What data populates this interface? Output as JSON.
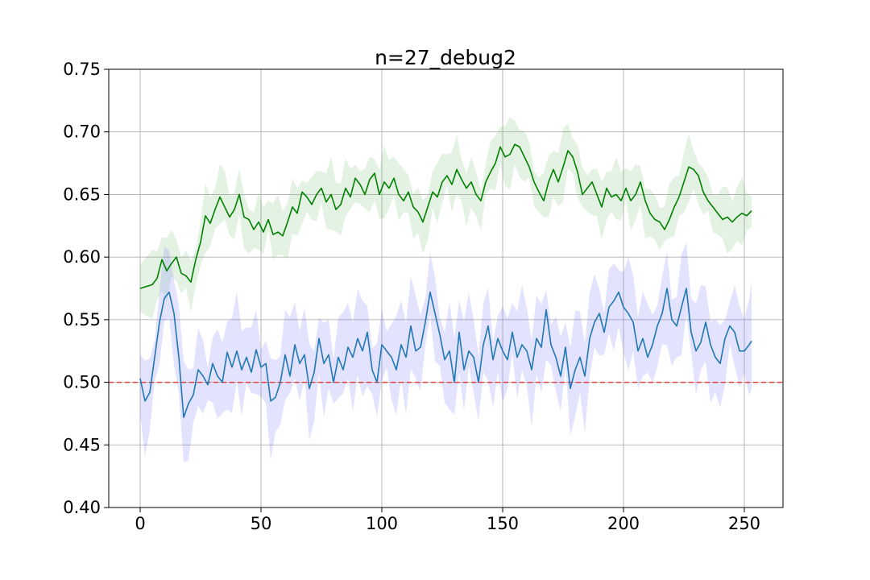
{
  "chart_data": {
    "type": "line",
    "title": "n=27_debug2",
    "xlabel": "",
    "ylabel": "",
    "xlim": [
      -13,
      266
    ],
    "ylim": [
      0.4,
      0.75
    ],
    "xticks": [
      0,
      50,
      100,
      150,
      200,
      250
    ],
    "xtick_labels": [
      "0",
      "50",
      "100",
      "150",
      "200",
      "250"
    ],
    "yticks": [
      0.4,
      0.45,
      0.5,
      0.55,
      0.6,
      0.65,
      0.7,
      0.75
    ],
    "ytick_labels": [
      "0.40",
      "0.45",
      "0.50",
      "0.55",
      "0.60",
      "0.65",
      "0.70",
      "0.75"
    ],
    "grid": true,
    "reference_line": {
      "y": 0.5,
      "color": "#e8403f",
      "style": "dashed"
    },
    "series": [
      {
        "color": "#008000",
        "band_color": "#6ab56a",
        "band_halfwidth": 0.019,
        "points": [
          [
            0,
            0.575
          ],
          [
            5,
            0.578
          ],
          [
            7,
            0.583
          ],
          [
            9,
            0.598
          ],
          [
            11,
            0.589
          ],
          [
            13,
            0.595
          ],
          [
            15,
            0.6
          ],
          [
            17,
            0.587
          ],
          [
            19,
            0.585
          ],
          [
            21,
            0.58
          ],
          [
            23,
            0.598
          ],
          [
            25,
            0.612
          ],
          [
            27,
            0.633
          ],
          [
            29,
            0.627
          ],
          [
            31,
            0.638
          ],
          [
            33,
            0.648
          ],
          [
            35,
            0.64
          ],
          [
            37,
            0.632
          ],
          [
            39,
            0.638
          ],
          [
            41,
            0.65
          ],
          [
            43,
            0.632
          ],
          [
            45,
            0.63
          ],
          [
            47,
            0.622
          ],
          [
            49,
            0.628
          ],
          [
            51,
            0.62
          ],
          [
            53,
            0.63
          ],
          [
            55,
            0.618
          ],
          [
            57,
            0.62
          ],
          [
            59,
            0.617
          ],
          [
            61,
            0.628
          ],
          [
            63,
            0.64
          ],
          [
            65,
            0.635
          ],
          [
            67,
            0.652
          ],
          [
            69,
            0.648
          ],
          [
            71,
            0.642
          ],
          [
            73,
            0.65
          ],
          [
            75,
            0.655
          ],
          [
            77,
            0.644
          ],
          [
            79,
            0.65
          ],
          [
            81,
            0.638
          ],
          [
            83,
            0.642
          ],
          [
            85,
            0.655
          ],
          [
            87,
            0.648
          ],
          [
            89,
            0.663
          ],
          [
            91,
            0.658
          ],
          [
            93,
            0.65
          ],
          [
            95,
            0.662
          ],
          [
            97,
            0.667
          ],
          [
            99,
            0.65
          ],
          [
            101,
            0.66
          ],
          [
            103,
            0.655
          ],
          [
            105,
            0.663
          ],
          [
            107,
            0.65
          ],
          [
            109,
            0.645
          ],
          [
            111,
            0.652
          ],
          [
            113,
            0.64
          ],
          [
            115,
            0.636
          ],
          [
            117,
            0.628
          ],
          [
            119,
            0.64
          ],
          [
            121,
            0.652
          ],
          [
            123,
            0.648
          ],
          [
            125,
            0.66
          ],
          [
            127,
            0.665
          ],
          [
            129,
            0.658
          ],
          [
            131,
            0.67
          ],
          [
            133,
            0.662
          ],
          [
            135,
            0.655
          ],
          [
            137,
            0.66
          ],
          [
            139,
            0.65
          ],
          [
            141,
            0.645
          ],
          [
            143,
            0.66
          ],
          [
            145,
            0.668
          ],
          [
            147,
            0.675
          ],
          [
            149,
            0.688
          ],
          [
            151,
            0.68
          ],
          [
            153,
            0.682
          ],
          [
            155,
            0.69
          ],
          [
            157,
            0.688
          ],
          [
            159,
            0.68
          ],
          [
            161,
            0.672
          ],
          [
            163,
            0.66
          ],
          [
            165,
            0.652
          ],
          [
            167,
            0.645
          ],
          [
            169,
            0.66
          ],
          [
            171,
            0.67
          ],
          [
            173,
            0.66
          ],
          [
            175,
            0.672
          ],
          [
            177,
            0.685
          ],
          [
            179,
            0.68
          ],
          [
            181,
            0.668
          ],
          [
            183,
            0.65
          ],
          [
            185,
            0.655
          ],
          [
            187,
            0.66
          ],
          [
            189,
            0.65
          ],
          [
            191,
            0.64
          ],
          [
            193,
            0.655
          ],
          [
            195,
            0.648
          ],
          [
            197,
            0.65
          ],
          [
            199,
            0.645
          ],
          [
            201,
            0.655
          ],
          [
            203,
            0.645
          ],
          [
            205,
            0.65
          ],
          [
            207,
            0.66
          ],
          [
            209,
            0.645
          ],
          [
            211,
            0.635
          ],
          [
            213,
            0.63
          ],
          [
            215,
            0.628
          ],
          [
            217,
            0.622
          ],
          [
            219,
            0.63
          ],
          [
            221,
            0.64
          ],
          [
            223,
            0.648
          ],
          [
            225,
            0.66
          ],
          [
            227,
            0.672
          ],
          [
            229,
            0.67
          ],
          [
            231,
            0.665
          ],
          [
            233,
            0.652
          ],
          [
            235,
            0.645
          ],
          [
            237,
            0.64
          ],
          [
            239,
            0.635
          ],
          [
            241,
            0.63
          ],
          [
            243,
            0.632
          ],
          [
            245,
            0.628
          ],
          [
            247,
            0.632
          ],
          [
            249,
            0.635
          ],
          [
            251,
            0.633
          ],
          [
            253,
            0.637
          ]
        ]
      },
      {
        "color": "#1f77b4",
        "band_color": "#6666ff",
        "band_halfwidth": 0.03,
        "points": [
          [
            0,
            0.503
          ],
          [
            2,
            0.485
          ],
          [
            4,
            0.492
          ],
          [
            6,
            0.52
          ],
          [
            8,
            0.548
          ],
          [
            10,
            0.567
          ],
          [
            12,
            0.572
          ],
          [
            14,
            0.555
          ],
          [
            16,
            0.52
          ],
          [
            18,
            0.472
          ],
          [
            20,
            0.483
          ],
          [
            22,
            0.49
          ],
          [
            24,
            0.51
          ],
          [
            26,
            0.505
          ],
          [
            28,
            0.498
          ],
          [
            30,
            0.515
          ],
          [
            32,
            0.505
          ],
          [
            34,
            0.5
          ],
          [
            36,
            0.524
          ],
          [
            38,
            0.512
          ],
          [
            40,
            0.525
          ],
          [
            42,
            0.51
          ],
          [
            44,
            0.52
          ],
          [
            46,
            0.508
          ],
          [
            48,
            0.526
          ],
          [
            50,
            0.512
          ],
          [
            52,
            0.515
          ],
          [
            54,
            0.485
          ],
          [
            56,
            0.488
          ],
          [
            58,
            0.5
          ],
          [
            60,
            0.522
          ],
          [
            62,
            0.505
          ],
          [
            64,
            0.53
          ],
          [
            66,
            0.515
          ],
          [
            68,
            0.522
          ],
          [
            70,
            0.495
          ],
          [
            72,
            0.508
          ],
          [
            74,
            0.535
          ],
          [
            76,
            0.515
          ],
          [
            78,
            0.522
          ],
          [
            80,
            0.5
          ],
          [
            82,
            0.52
          ],
          [
            84,
            0.51
          ],
          [
            86,
            0.528
          ],
          [
            88,
            0.52
          ],
          [
            90,
            0.535
          ],
          [
            92,
            0.525
          ],
          [
            94,
            0.54
          ],
          [
            96,
            0.51
          ],
          [
            98,
            0.5
          ],
          [
            100,
            0.53
          ],
          [
            102,
            0.525
          ],
          [
            104,
            0.52
          ],
          [
            106,
            0.51
          ],
          [
            108,
            0.53
          ],
          [
            110,
            0.52
          ],
          [
            112,
            0.545
          ],
          [
            114,
            0.525
          ],
          [
            116,
            0.528
          ],
          [
            118,
            0.548
          ],
          [
            120,
            0.572
          ],
          [
            122,
            0.555
          ],
          [
            124,
            0.538
          ],
          [
            126,
            0.518
          ],
          [
            128,
            0.525
          ],
          [
            130,
            0.5
          ],
          [
            132,
            0.54
          ],
          [
            134,
            0.51
          ],
          [
            136,
            0.525
          ],
          [
            138,
            0.52
          ],
          [
            140,
            0.5
          ],
          [
            142,
            0.53
          ],
          [
            144,
            0.545
          ],
          [
            146,
            0.518
          ],
          [
            148,
            0.535
          ],
          [
            150,
            0.525
          ],
          [
            152,
            0.518
          ],
          [
            154,
            0.54
          ],
          [
            156,
            0.52
          ],
          [
            158,
            0.53
          ],
          [
            160,
            0.525
          ],
          [
            162,
            0.51
          ],
          [
            164,
            0.535
          ],
          [
            166,
            0.528
          ],
          [
            168,
            0.558
          ],
          [
            170,
            0.53
          ],
          [
            172,
            0.52
          ],
          [
            174,
            0.505
          ],
          [
            176,
            0.528
          ],
          [
            178,
            0.495
          ],
          [
            180,
            0.51
          ],
          [
            182,
            0.52
          ],
          [
            184,
            0.505
          ],
          [
            186,
            0.535
          ],
          [
            188,
            0.548
          ],
          [
            190,
            0.555
          ],
          [
            192,
            0.54
          ],
          [
            194,
            0.56
          ],
          [
            196,
            0.565
          ],
          [
            198,
            0.572
          ],
          [
            200,
            0.56
          ],
          [
            202,
            0.555
          ],
          [
            204,
            0.548
          ],
          [
            206,
            0.525
          ],
          [
            208,
            0.535
          ],
          [
            210,
            0.52
          ],
          [
            212,
            0.53
          ],
          [
            214,
            0.545
          ],
          [
            216,
            0.555
          ],
          [
            218,
            0.575
          ],
          [
            220,
            0.55
          ],
          [
            222,
            0.545
          ],
          [
            224,
            0.56
          ],
          [
            226,
            0.575
          ],
          [
            228,
            0.54
          ],
          [
            230,
            0.525
          ],
          [
            232,
            0.532
          ],
          [
            234,
            0.548
          ],
          [
            236,
            0.53
          ],
          [
            238,
            0.52
          ],
          [
            240,
            0.515
          ],
          [
            242,
            0.535
          ],
          [
            244,
            0.545
          ],
          [
            246,
            0.54
          ],
          [
            248,
            0.525
          ],
          [
            250,
            0.525
          ],
          [
            252,
            0.53
          ],
          [
            253,
            0.533
          ]
        ]
      }
    ]
  }
}
